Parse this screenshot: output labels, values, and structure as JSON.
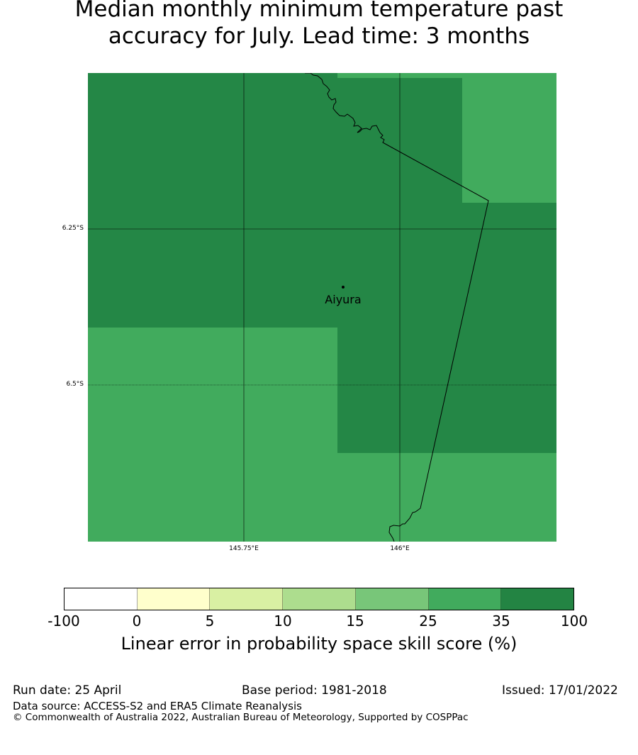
{
  "title": {
    "line1": "Median monthly minimum temperature past",
    "line2": "accuracy for July. Lead time: 3 months"
  },
  "map": {
    "lat_labels": [
      "6.25°S",
      "6.5°S"
    ],
    "lon_labels": [
      "145.75°E",
      "146°E"
    ],
    "place": {
      "name": "Aiyura"
    },
    "colors": {
      "high": "#248746",
      "mid": "#41ab5d"
    }
  },
  "colorbar": {
    "ticks": [
      "-100",
      "0",
      "5",
      "10",
      "15",
      "25",
      "35",
      "100"
    ],
    "colors": [
      "#ffffff",
      "#ffffcc",
      "#d9f0a3",
      "#addd8e",
      "#78c679",
      "#41ab5d",
      "#238443"
    ],
    "label": "Linear error in probability space skill score (%)"
  },
  "footer": {
    "run_date": "Run date: 25 April",
    "base_period": "Base period: 1981-2018",
    "issued": "Issued: 17/01/2022",
    "data_source": "Data source: ACCESS-S2 and ERA5 Climate Reanalysis",
    "copyright": "© Commonwealth of Australia 2022, Australian Bureau of Meteorology, Supported by COSPPac"
  }
}
